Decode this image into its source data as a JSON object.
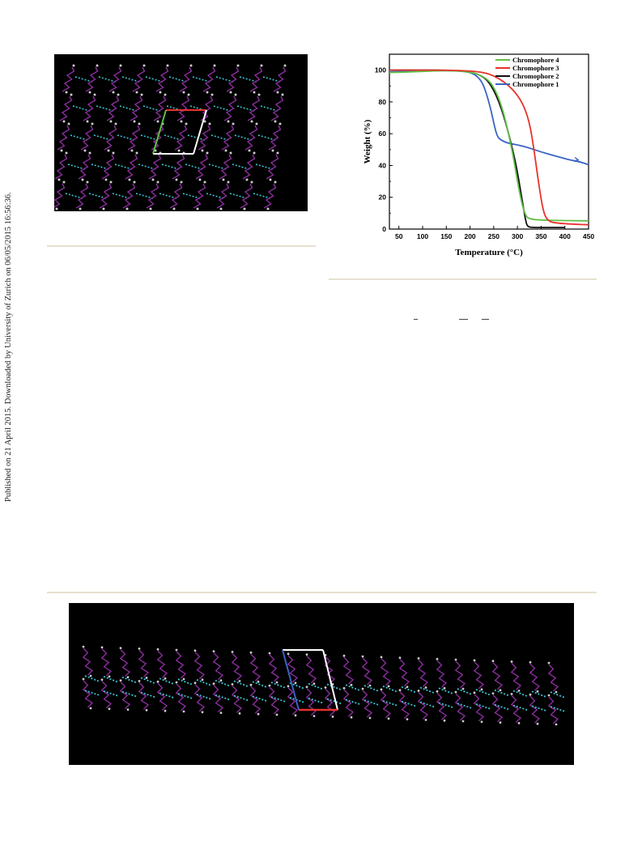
{
  "side_note": "Published on 21 April 2015. Downloaded by University of Zurich on 06/05/2015 16:56:36.",
  "colors": {
    "chromophore_4": "#5fbf45",
    "chromophore_3": "#e8322b",
    "chromophore_2": "#111111",
    "chromophore_1": "#3a64c4",
    "rule": "#e6e1cf",
    "molecule_bonds": "#8a2d9c",
    "hydrogen_bonds": "#38c3d1"
  },
  "figures": {
    "top_left": {
      "description_icon": "crystal-packing-image"
    },
    "bottom": {
      "description_icon": "crystal-packing-image"
    }
  },
  "chart_data": {
    "type": "line",
    "xlabel": "Temperature (°C)",
    "ylabel": "Weight (%)",
    "xlim": [
      30,
      450
    ],
    "ylim": [
      0,
      110
    ],
    "xticks": [
      50,
      100,
      150,
      200,
      250,
      300,
      350,
      400,
      450
    ],
    "yticks": [
      0,
      20,
      40,
      60,
      80,
      100
    ],
    "legend_position": "top-right",
    "series": [
      {
        "name": "Chromophore 4",
        "color": "#5fbf45",
        "x": [
          30,
          60,
          100,
          150,
          200,
          230,
          250,
          270,
          290,
          300,
          310,
          318,
          325,
          340,
          380,
          450
        ],
        "y": [
          98.5,
          98.7,
          99.2,
          99.8,
          99,
          96,
          90,
          75,
          48,
          30,
          15,
          8,
          6.5,
          5.8,
          5.4,
          5.2
        ]
      },
      {
        "name": "Chromophore 3",
        "color": "#e8322b",
        "x": [
          30,
          100,
          150,
          200,
          230,
          250,
          270,
          290,
          310,
          325,
          335,
          345,
          355,
          365,
          380,
          420,
          450
        ],
        "y": [
          100,
          100,
          100,
          99.5,
          98.5,
          96.5,
          93,
          88,
          80,
          68,
          50,
          28,
          10,
          5,
          3.8,
          3,
          2.7
        ]
      },
      {
        "name": "Chromophore 2",
        "color": "#111111",
        "x": [
          30,
          100,
          150,
          200,
          230,
          250,
          270,
          290,
          300,
          310,
          318,
          322,
          330,
          360,
          400
        ],
        "y": [
          100,
          100,
          100,
          99,
          96,
          88,
          73,
          50,
          36,
          18,
          4,
          1.5,
          1,
          1,
          1
        ]
      },
      {
        "name": "Chromophore 1",
        "color": "#3a64c4",
        "x": [
          30,
          100,
          150,
          190,
          210,
          225,
          235,
          245,
          252,
          258,
          265,
          280,
          300,
          320,
          350,
          380,
          410,
          430,
          450
        ],
        "y": [
          99,
          99.5,
          99.8,
          99.3,
          97.5,
          93,
          85,
          74,
          64,
          58,
          56,
          54,
          53,
          51.5,
          48.5,
          46,
          43.5,
          42.5,
          40.5
        ]
      }
    ]
  }
}
